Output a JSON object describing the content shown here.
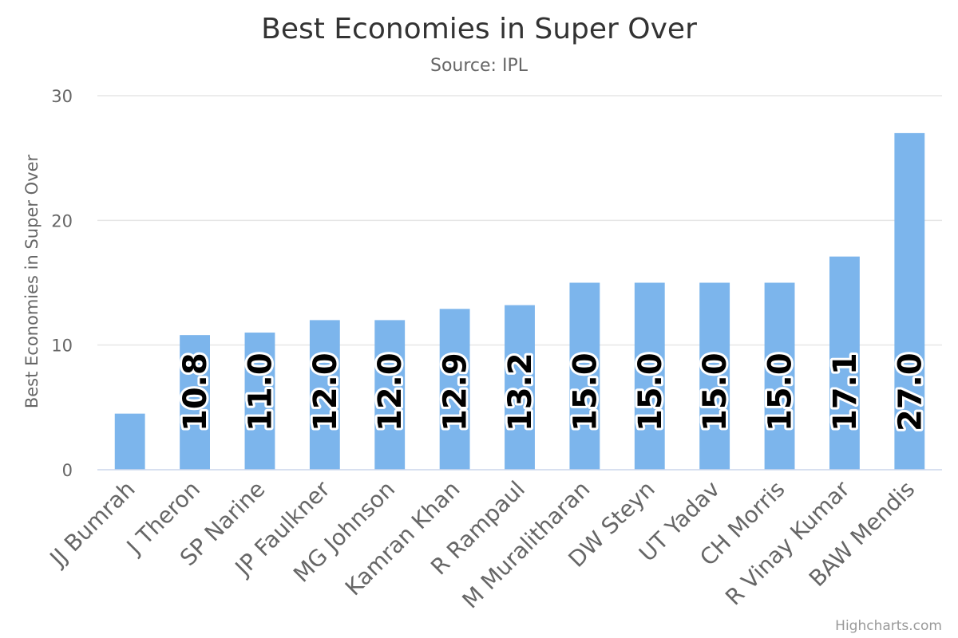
{
  "chart_data": {
    "type": "bar",
    "title": "Best Economies in Super Over",
    "subtitle": "Source: IPL",
    "ylabel": "Best Economies in Super Over",
    "xlabel": "",
    "ylim": [
      0,
      30
    ],
    "yticks": [
      0,
      10,
      20,
      30
    ],
    "grid": true,
    "legend": "none",
    "bar_color": "#7cb5ec",
    "categories": [
      "JJ Bumrah",
      "J Theron",
      "SP Narine",
      "JP Faulkner",
      "MG Johnson",
      "Kamran Khan",
      "R Rampaul",
      "M Muralitharan",
      "DW Steyn",
      "UT Yadav",
      "CH Morris",
      "R Vinay Kumar",
      "BAW Mendis"
    ],
    "values": [
      4.5,
      10.8,
      11.0,
      12.0,
      12.0,
      12.9,
      13.2,
      15.0,
      15.0,
      15.0,
      15.0,
      17.1,
      27.0
    ],
    "data_labels": [
      "",
      "10.8",
      "11.0",
      "12.0",
      "12.0",
      "12.9",
      "13.2",
      "15.0",
      "15.0",
      "15.0",
      "15.0",
      "17.1",
      "27.0"
    ]
  },
  "credits": "Highcharts.com"
}
